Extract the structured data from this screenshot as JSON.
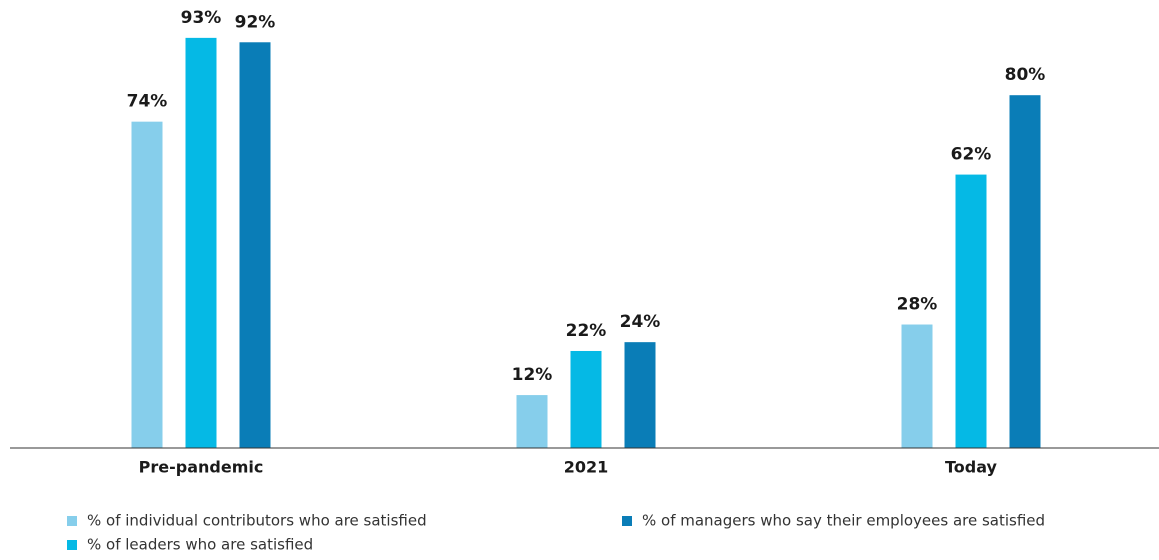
{
  "chart_data": {
    "type": "bar",
    "categories": [
      "Pre-pandemic",
      "2021",
      "Today"
    ],
    "series": [
      {
        "name": "% of individual contributors who are satisfied",
        "color": "#86ceeb",
        "values": [
          74,
          12,
          28
        ],
        "value_labels": [
          "74%",
          "12%",
          "28%"
        ]
      },
      {
        "name": "% of leaders who are satisfied",
        "color": "#05b9e5",
        "values": [
          93,
          22,
          62
        ],
        "value_labels": [
          "93%",
          "22%",
          "62%"
        ]
      },
      {
        "name": "% of managers who say their employees are satisfied",
        "color": "#0a7db7",
        "values": [
          92,
          24,
          80
        ],
        "value_labels": [
          "92%",
          "24%",
          "80%"
        ]
      }
    ],
    "ylim": [
      0,
      100
    ]
  }
}
